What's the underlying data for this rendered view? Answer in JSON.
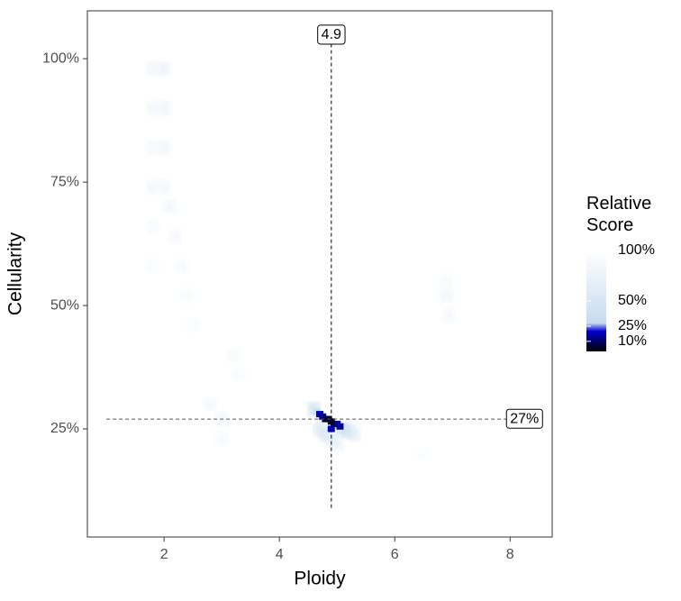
{
  "chart_data": {
    "type": "heatmap",
    "x_label": "Ploidy",
    "y_label": "Cellularity",
    "xlim": [
      0.67,
      8.73
    ],
    "ylim": [
      3.1,
      109.7
    ],
    "xticks": [
      2,
      4,
      6,
      8
    ],
    "yticks": [
      {
        "value": 25,
        "label": "25%"
      },
      {
        "value": 50,
        "label": "50%"
      },
      {
        "value": 75,
        "label": "75%"
      },
      {
        "value": 100,
        "label": "100%"
      }
    ],
    "x": [
      4.7,
      4.75,
      4.8,
      4.85,
      4.9,
      4.95,
      5.0,
      5.05,
      4.9,
      4.65,
      4.6,
      5.1,
      5.2,
      4.8,
      4.9,
      5.0,
      5.3,
      4.7,
      1.8,
      1.8,
      1.8,
      1.8,
      1.8,
      1.8,
      2.0,
      2.0,
      2.0,
      2.0,
      2.1,
      2.2,
      2.3,
      2.4,
      2.5,
      3.2,
      3.3,
      2.8,
      3.0,
      3.0,
      6.9,
      6.95,
      6.9,
      6.5
    ],
    "y": [
      28,
      27.5,
      27,
      27,
      26.5,
      26,
      26,
      25.5,
      25,
      28.5,
      29,
      25,
      24.5,
      24,
      23,
      22,
      24,
      25,
      98,
      90,
      82,
      74,
      66,
      58,
      98,
      90,
      82,
      74,
      70,
      64,
      58,
      52,
      46,
      40,
      36,
      30,
      27,
      23,
      52,
      48,
      55,
      20
    ],
    "values": [
      18,
      15,
      8,
      5,
      3,
      12,
      20,
      15,
      20,
      35,
      55,
      45,
      60,
      60,
      70,
      80,
      75,
      65,
      85,
      88,
      90,
      88,
      92,
      94,
      82,
      84,
      86,
      88,
      88,
      90,
      91,
      92,
      94,
      92,
      94,
      90,
      86,
      92,
      86,
      88,
      92,
      96
    ],
    "color_scale": [
      {
        "value": 0,
        "color": "#000000"
      },
      {
        "value": 12,
        "color": "#000080"
      },
      {
        "value": 20,
        "color": "#0000cd"
      },
      {
        "value": 28,
        "color": "#c6dbef"
      },
      {
        "value": 100,
        "color": "#ffffff"
      }
    ],
    "legend_title": "Relative Score",
    "legend_ticks": [
      {
        "value": 100,
        "label": "100%"
      },
      {
        "value": 50,
        "label": "50%"
      },
      {
        "value": 25,
        "label": "25%"
      },
      {
        "value": 10,
        "label": "10%"
      }
    ],
    "vline": {
      "x": 4.9,
      "y_range": [
        9,
        103
      ],
      "label": "4.9"
    },
    "hline": {
      "y": 27,
      "x_range": [
        1,
        8
      ],
      "label": "27%"
    }
  }
}
